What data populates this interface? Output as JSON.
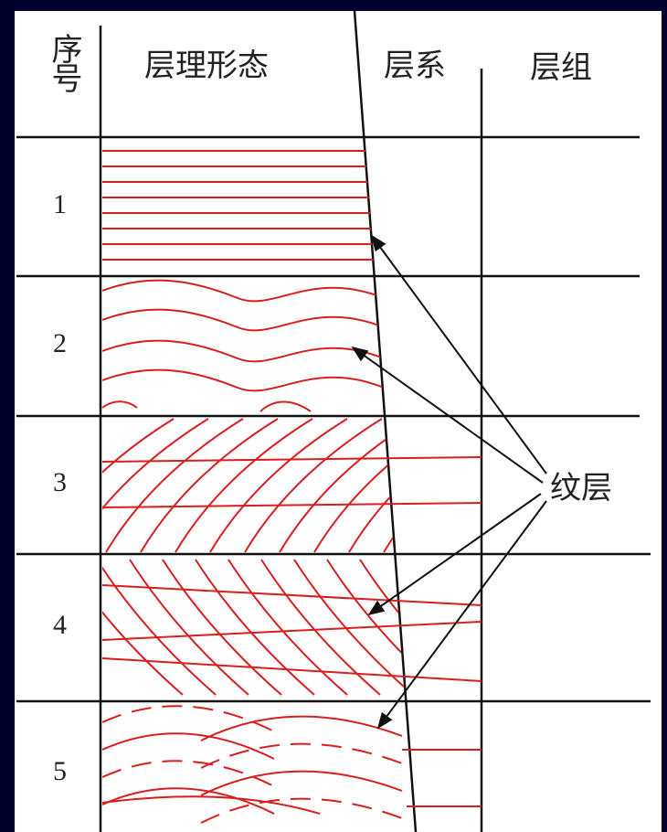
{
  "header": {
    "index": "序号",
    "form": "层理形态",
    "set": "层系",
    "group": "层组"
  },
  "rows": [
    "1",
    "2",
    "3",
    "4",
    "5"
  ],
  "annotation": "纹层"
}
